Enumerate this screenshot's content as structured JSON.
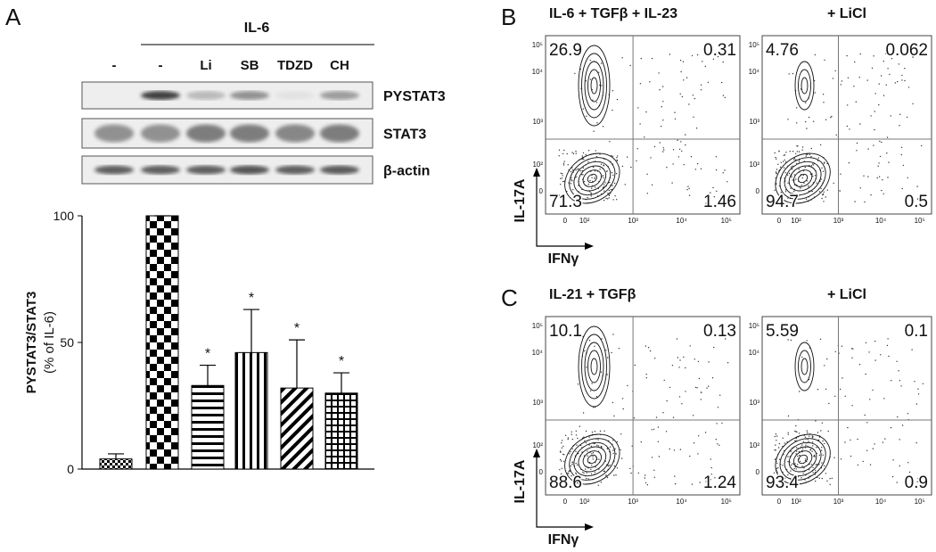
{
  "panel_a": {
    "label": "A",
    "treatment_header": "IL-6",
    "lanes": [
      "-",
      "-",
      "Li",
      "SB",
      "TDZD",
      "CH"
    ],
    "blot_rows": [
      "PYSTAT3",
      "STAT3",
      "β-actin"
    ]
  },
  "chart_data": {
    "type": "bar",
    "y_label": [
      "PYSTAT3/STAT3",
      "(% of IL-6)"
    ],
    "categories": [
      null,
      null,
      null,
      null,
      null,
      null
    ],
    "values": [
      4,
      100,
      33,
      46,
      32,
      30
    ],
    "errors": [
      2,
      0,
      8,
      17,
      19,
      8
    ],
    "significance": [
      null,
      null,
      "*",
      "*",
      "*",
      "*"
    ],
    "ylim": [
      0,
      100
    ],
    "yticks": [
      0,
      50,
      100
    ],
    "color": "#000000"
  },
  "flow": {
    "ticks": [
      "0",
      "10²",
      "10³",
      "10⁴",
      "10⁵"
    ],
    "panels": [
      {
        "label": "B",
        "y_label": "IL-17A",
        "x_label": "IFNγ",
        "plots": [
          {
            "title": "IL-6 + TGFβ + IL-23",
            "quadrants": [
              "26.9",
              "0.31",
              "71.3",
              "1.46"
            ]
          },
          {
            "title": "+ LiCl",
            "quadrants": [
              "4.76",
              "0.062",
              "94.7",
              "0.5"
            ]
          }
        ]
      },
      {
        "label": "C",
        "y_label": "IL-17A",
        "x_label": "IFNγ",
        "plots": [
          {
            "title": "IL-21 + TGFβ",
            "quadrants": [
              "10.1",
              "0.13",
              "88.6",
              "1.24"
            ]
          },
          {
            "title": "+ LiCl",
            "quadrants": [
              "5.59",
              "0.1",
              "93.4",
              "0.9"
            ]
          }
        ]
      }
    ]
  }
}
